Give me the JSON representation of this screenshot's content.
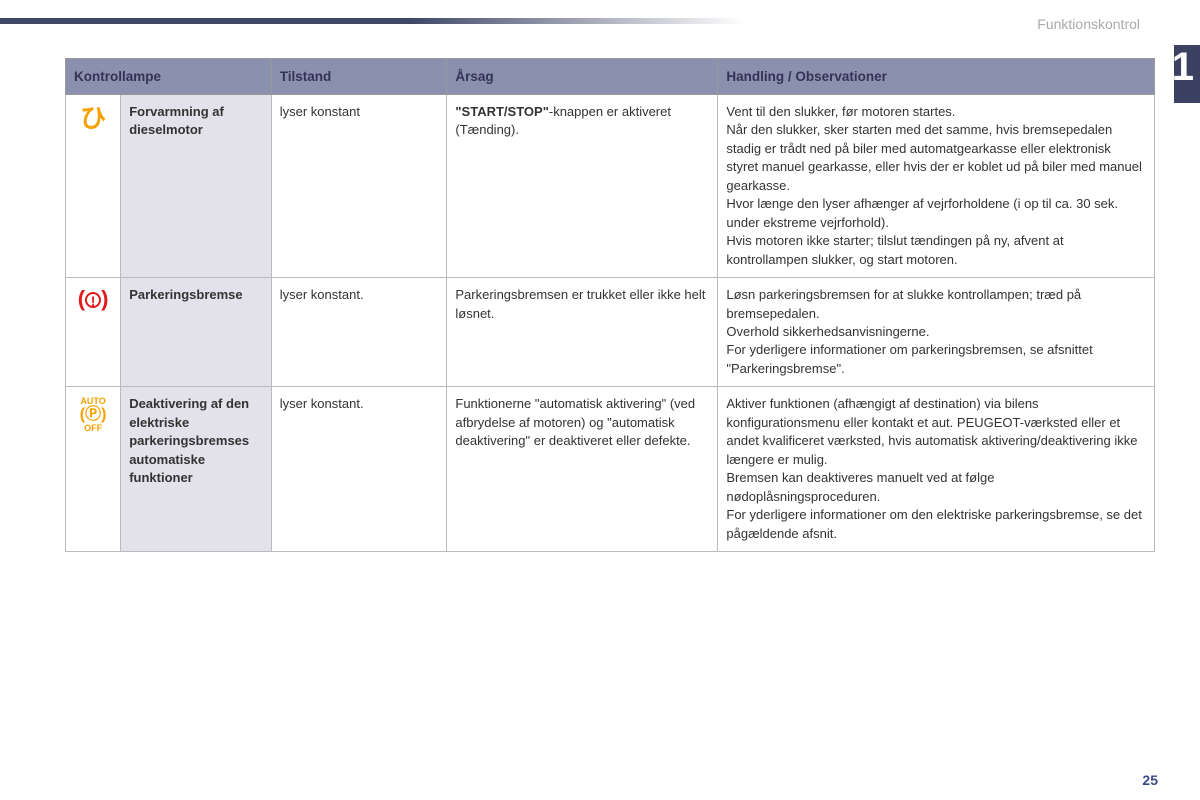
{
  "breadcrumb": "Funktionskontrol",
  "chapter_number": "1",
  "page_number": "25",
  "colors": {
    "header_bg": "#8b90af",
    "name_col_bg": "#e3e1e9",
    "chapter_badge": "#3b4160",
    "amber_icon": "#f5a100",
    "red_icon": "#e31b1b",
    "page_num": "#3b4a88"
  },
  "table": {
    "headers": {
      "col1": "Kontrollampe",
      "col2": "Tilstand",
      "col3": "Årsag",
      "col4": "Handling / Observationer"
    },
    "rows": [
      {
        "icon_name": "diesel-preheat-icon",
        "name": "Forvarmning af dieselmotor",
        "state": "lyser konstant",
        "cause_html": "<b>\"START/STOP\"</b>-knappen er aktiveret (Tænding).",
        "action": "Vent til den slukker, før motoren startes.\nNår den slukker, sker starten med det samme, hvis bremsepedalen stadig er trådt ned på biler med automatgearkasse eller elektronisk styret manuel gearkasse, eller hvis der er koblet ud på biler med manuel gearkasse.\nHvor længe den lyser afhænger af vejrforholdene (i op til ca. 30 sek. under ekstreme vejrforhold).\nHvis motoren ikke starter; tilslut tændingen på ny, afvent at kontrollampen slukker, og start motoren."
      },
      {
        "icon_name": "parking-brake-icon",
        "name": "Parkeringsbremse",
        "state": "lyser konstant.",
        "cause": "Parkeringsbremsen er trukket eller ikke helt løsnet.",
        "action": "Løsn parkeringsbremsen for at slukke kontrollampen; træd på bremsepedalen.\nOverhold sikkerhedsanvisningerne.\nFor yderligere informationer om parkeringsbremsen, se afsnittet \"Parkeringsbremse\"."
      },
      {
        "icon_name": "auto-parking-off-icon",
        "name": "Deaktivering af den elektriske parkeringsbremses automatiske funktioner",
        "state": "lyser konstant.",
        "cause": "Funktionerne \"automatisk aktivering\" (ved afbrydelse af motoren) og \"automatisk deaktivering\" er deaktiveret eller defekte.",
        "action": "Aktiver funktionen (afhængigt af destination) via bilens konfigurationsmenu eller kontakt et aut. PEUGEOT-værksted eller et andet kvalificeret værksted, hvis automatisk aktivering/deaktivering ikke længere er mulig.\nBremsen kan deaktiveres manuelt ved at følge nødoplåsningsproceduren.\nFor yderligere informationer om den elektriske parkeringsbremse, se det pågældende afsnit."
      }
    ]
  }
}
